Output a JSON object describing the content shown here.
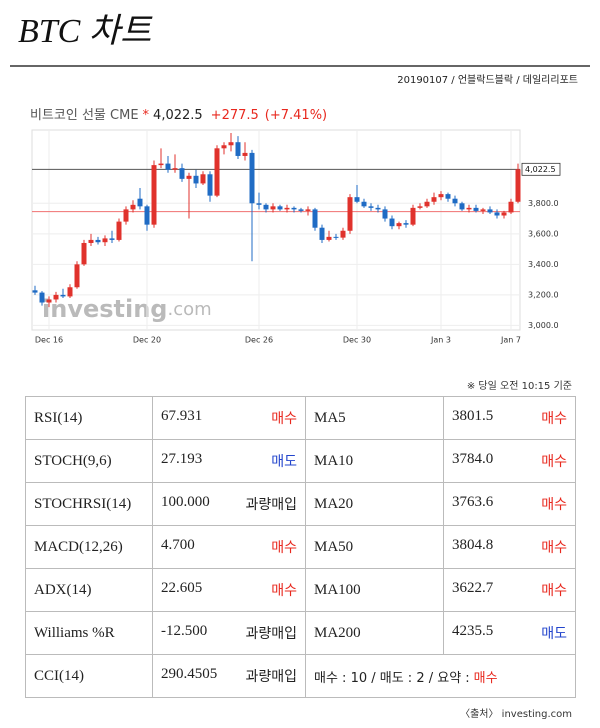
{
  "header": {
    "title": "BTC 차트",
    "byline": "20190107 / 언블락드블락 / 데일리리포트"
  },
  "chart_data": {
    "type": "candlestick",
    "title": "비트코인 선물 CME",
    "marker": "*",
    "price": "4,022.5",
    "change": "+277.5",
    "change_pct": "(+7.41%)",
    "watermark": "investing",
    "watermark_suffix": ".com",
    "categories": [
      null,
      null,
      "Dec 16",
      null,
      null,
      null,
      null,
      null,
      null,
      null,
      null,
      null,
      null,
      null,
      null,
      null,
      "Dec 20",
      null,
      null,
      null,
      null,
      null,
      null,
      null,
      null,
      null,
      null,
      null,
      null,
      null,
      null,
      null,
      "Dec 26",
      null,
      null,
      null,
      null,
      null,
      null,
      null,
      null,
      null,
      null,
      null,
      null,
      null,
      "Dec 30",
      null,
      null,
      null,
      null,
      null,
      null,
      null,
      null,
      null,
      null,
      null,
      "Jan 3",
      null,
      null,
      null,
      null,
      null,
      null,
      null,
      null,
      null,
      "Jan 7",
      null
    ],
    "open": [
      3230,
      3215,
      3150,
      3170,
      3200,
      3190,
      3250,
      3400,
      3540,
      3560,
      3545,
      3570,
      3560,
      3680,
      3760,
      3830,
      3780,
      3660,
      4050,
      4060,
      4020,
      4030,
      3960,
      3980,
      3930,
      3990,
      3850,
      4160,
      4180,
      4200,
      4110,
      4130,
      3800,
      3790,
      3760,
      3780,
      3760,
      3770,
      3760,
      3750,
      3760,
      3640,
      3560,
      3580,
      3575,
      3620,
      3840,
      3810,
      3780,
      3770,
      3760,
      3700,
      3650,
      3670,
      3660,
      3770,
      3780,
      3810,
      3840,
      3860,
      3830,
      3800,
      3760,
      3770,
      3750,
      3760,
      3740,
      3720,
      3740,
      3810
    ],
    "high": [
      3260,
      3225,
      3190,
      3220,
      3240,
      3270,
      3420,
      3560,
      3600,
      3580,
      3590,
      3620,
      3700,
      3780,
      3820,
      3900,
      3790,
      4080,
      4160,
      4110,
      4120,
      4060,
      4000,
      4020,
      4010,
      4010,
      4180,
      4200,
      4260,
      4240,
      4200,
      4150,
      3870,
      3800,
      3800,
      3790,
      3790,
      3780,
      3770,
      3780,
      3770,
      3660,
      3620,
      3600,
      3640,
      3860,
      3920,
      3830,
      3800,
      3790,
      3780,
      3720,
      3680,
      3690,
      3790,
      3800,
      3830,
      3870,
      3880,
      3870,
      3850,
      3810,
      3790,
      3790,
      3770,
      3780,
      3760,
      3750,
      3830,
      4060
    ],
    "low": [
      3200,
      3130,
      3120,
      3150,
      3180,
      3180,
      3240,
      3390,
      3520,
      3530,
      3520,
      3540,
      3550,
      3660,
      3740,
      3760,
      3620,
      3640,
      4030,
      4000,
      4000,
      3940,
      3700,
      3900,
      3920,
      3810,
      3840,
      4120,
      4140,
      4090,
      4080,
      3420,
      3760,
      3740,
      3740,
      3750,
      3740,
      3740,
      3740,
      3720,
      3620,
      3540,
      3550,
      3560,
      3560,
      3600,
      3800,
      3770,
      3750,
      3740,
      3680,
      3630,
      3630,
      3640,
      3650,
      3760,
      3770,
      3790,
      3820,
      3810,
      3780,
      3750,
      3740,
      3740,
      3730,
      3730,
      3700,
      3700,
      3730,
      3800
    ],
    "close": [
      3215,
      3150,
      3170,
      3200,
      3190,
      3250,
      3400,
      3540,
      3560,
      3545,
      3570,
      3560,
      3680,
      3760,
      3790,
      3780,
      3660,
      4050,
      4060,
      4020,
      4030,
      3960,
      3980,
      3930,
      3990,
      3850,
      4160,
      4180,
      4200,
      4110,
      4130,
      3800,
      3790,
      3760,
      3780,
      3760,
      3770,
      3760,
      3750,
      3760,
      3640,
      3560,
      3580,
      3575,
      3620,
      3840,
      3810,
      3780,
      3770,
      3760,
      3700,
      3650,
      3670,
      3660,
      3770,
      3780,
      3810,
      3840,
      3860,
      3830,
      3800,
      3760,
      3770,
      3750,
      3760,
      3740,
      3720,
      3740,
      3810,
      4022.5
    ],
    "up_color": "#e0322c",
    "down_color": "#1f6bc4",
    "ylim": [
      2970,
      4280
    ],
    "yticks": [
      {
        "value": 3000,
        "label": "3,000.0"
      },
      {
        "value": 3200,
        "label": "3,200.0"
      },
      {
        "value": 3400,
        "label": "3,400.0"
      },
      {
        "value": 3600,
        "label": "3,600.0"
      },
      {
        "value": 3800,
        "label": "3,800.0"
      }
    ],
    "last_price": {
      "value": 4022.5,
      "label": "4,022.5"
    },
    "reference_line": 3745,
    "reference_color": "#f07070",
    "grid": true
  },
  "note": "※ 당일 오전 10:15 기준",
  "table": {
    "rows": [
      {
        "indicator": "RSI(14)",
        "value": "67.931",
        "signal": {
          "text": "매수",
          "color": "#e8281e"
        },
        "ma": "MA5",
        "ma_value": "3801.5",
        "ma_signal": {
          "text": "매수",
          "color": "#e8281e"
        }
      },
      {
        "indicator": "STOCH(9,6)",
        "value": "27.193",
        "signal": {
          "text": "매도",
          "color": "#2244cc"
        },
        "ma": "MA10",
        "ma_value": "3784.0",
        "ma_signal": {
          "text": "매수",
          "color": "#e8281e"
        }
      },
      {
        "indicator": "STOCHRSI(14)",
        "value": "100.000",
        "signal": {
          "text": "과량매입",
          "color": "#222222"
        },
        "ma": "MA20",
        "ma_value": "3763.6",
        "ma_signal": {
          "text": "매수",
          "color": "#e8281e"
        }
      },
      {
        "indicator": "MACD(12,26)",
        "value": "4.700",
        "signal": {
          "text": "매수",
          "color": "#e8281e"
        },
        "ma": "MA50",
        "ma_value": "3804.8",
        "ma_signal": {
          "text": "매수",
          "color": "#e8281e"
        }
      },
      {
        "indicator": "ADX(14)",
        "value": "22.605",
        "signal": {
          "text": "매수",
          "color": "#e8281e"
        },
        "ma": "MA100",
        "ma_value": "3622.7",
        "ma_signal": {
          "text": "매수",
          "color": "#e8281e"
        }
      },
      {
        "indicator": "Williams %R",
        "value": "-12.500",
        "signal": {
          "text": "과량매입",
          "color": "#222222"
        },
        "ma": "MA200",
        "ma_value": "4235.5",
        "ma_signal": {
          "text": "매도",
          "color": "#2244cc"
        }
      }
    ],
    "summary_row": {
      "indicator": "CCI(14)",
      "value": "290.4505",
      "signal": {
        "text": "과량매입",
        "color": "#222222"
      },
      "summary": "매수 : 10 / 매도 : 2 / 요약 :",
      "result": {
        "text": "매수",
        "color": "#e8281e"
      }
    }
  },
  "footer": "〈출처〉 investing.com"
}
